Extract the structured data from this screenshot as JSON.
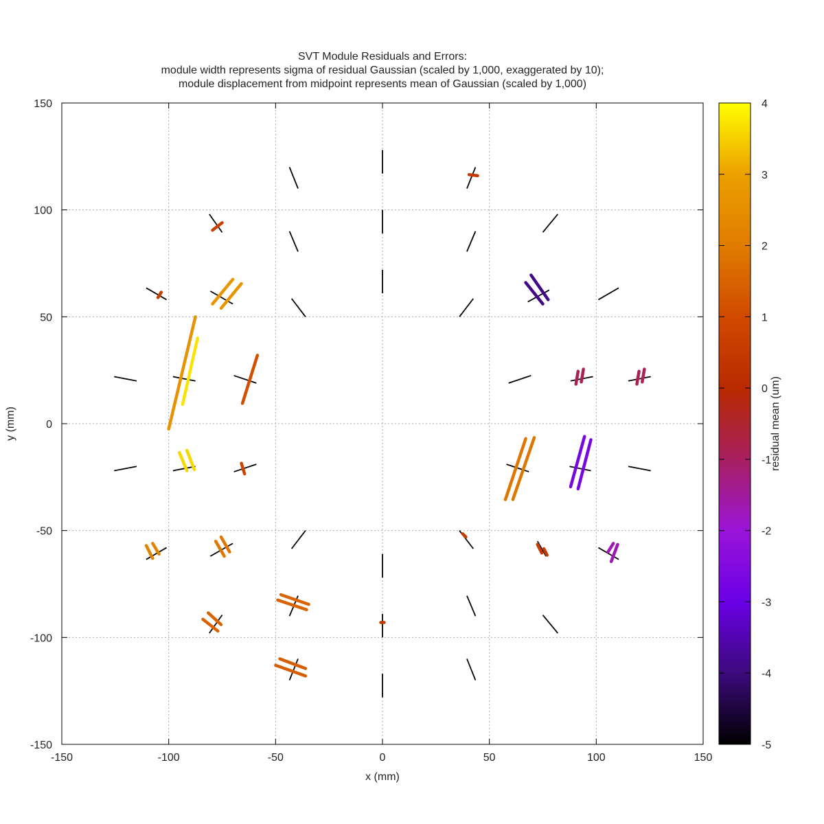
{
  "chart_data": {
    "type": "scatter",
    "title_lines": [
      "SVT Module Residuals and Errors:",
      "module width represents sigma of residual Gaussian (scaled by 1,000, exaggerated by 10);",
      "module displacement from midpoint represents mean of Gaussian (scaled by 1,000)"
    ],
    "xlabel": "x (mm)",
    "ylabel": "y (mm)",
    "xlim": [
      -150,
      150
    ],
    "ylim": [
      -150,
      150
    ],
    "xticks": [
      -150,
      -100,
      -50,
      0,
      50,
      100,
      150
    ],
    "yticks": [
      -150,
      -100,
      -50,
      0,
      50,
      100,
      150
    ],
    "xtick_labels": [
      "-150",
      "-100",
      "-50",
      "0",
      "50",
      "100",
      "150"
    ],
    "ytick_labels": [
      "-150",
      "-100",
      "-50",
      "0",
      "50",
      "100",
      "150"
    ],
    "grid": true,
    "colorbar": {
      "label": "residual mean (um)",
      "range": [
        -5,
        4
      ],
      "ticks": [
        -5,
        -4,
        -3,
        -2,
        -1,
        0,
        1,
        2,
        3,
        4
      ],
      "tick_labels": [
        "-5",
        "-4",
        "-3",
        "-2",
        "-1",
        "0",
        "1",
        "2",
        "3",
        "4"
      ],
      "stops": [
        {
          "v": -5,
          "color": "#000000"
        },
        {
          "v": -4,
          "color": "#3c0a7c"
        },
        {
          "v": -3,
          "color": "#6a00e6"
        },
        {
          "v": -2,
          "color": "#9a14d8"
        },
        {
          "v": -1,
          "color": "#a82060"
        },
        {
          "v": 0,
          "color": "#b82a00"
        },
        {
          "v": 1,
          "color": "#d04a00"
        },
        {
          "v": 2,
          "color": "#e07c00"
        },
        {
          "v": 3,
          "color": "#eca000"
        },
        {
          "v": 4,
          "color": "#ffff00"
        }
      ]
    },
    "modules": [
      {
        "x1": 0,
        "y1": 117,
        "x2": 0,
        "y2": 128
      },
      {
        "x1": 0,
        "y1": 89,
        "x2": 0,
        "y2": 100
      },
      {
        "x1": 0,
        "y1": 61,
        "x2": 0,
        "y2": 72
      },
      {
        "x1": 0,
        "y1": -89,
        "x2": 0,
        "y2": -100
      },
      {
        "x1": 0,
        "y1": -61,
        "x2": 0,
        "y2": -72
      },
      {
        "x1": 0,
        "y1": -117,
        "x2": 0,
        "y2": -128
      },
      {
        "x1": -43.5,
        "y1": 120,
        "x2": -39.5,
        "y2": 110
      },
      {
        "x1": -43.5,
        "y1": 90,
        "x2": -39.5,
        "y2": 80.5
      },
      {
        "x1": -42.5,
        "y1": 58.5,
        "x2": -36,
        "y2": 50
      },
      {
        "x1": 39.5,
        "y1": 110,
        "x2": 43.5,
        "y2": 120
      },
      {
        "x1": 39.5,
        "y1": 80.5,
        "x2": 43.5,
        "y2": 90
      },
      {
        "x1": 36,
        "y1": 50,
        "x2": 42.5,
        "y2": 58.5
      },
      {
        "x1": -36,
        "y1": -50,
        "x2": -42.5,
        "y2": -58.5
      },
      {
        "x1": 36,
        "y1": -50,
        "x2": 42.5,
        "y2": -58.5
      },
      {
        "x1": 39.5,
        "y1": -80.5,
        "x2": 43.5,
        "y2": -90
      },
      {
        "x1": 39.5,
        "y1": -110,
        "x2": 43.5,
        "y2": -120
      },
      {
        "x1": 75,
        "y1": 89.5,
        "x2": 82,
        "y2": 98
      },
      {
        "x1": 101,
        "y1": 58,
        "x2": 110.5,
        "y2": 63.5
      },
      {
        "x1": 59,
        "y1": 19,
        "x2": 69.5,
        "y2": 22.5
      },
      {
        "x1": 88,
        "y1": 20,
        "x2": 98.5,
        "y2": 22
      },
      {
        "x1": 115,
        "y1": 20,
        "x2": 125.5,
        "y2": 22
      },
      {
        "x1": 58,
        "y1": -19,
        "x2": 68.5,
        "y2": -22.5
      },
      {
        "x1": 87.5,
        "y1": -20,
        "x2": 97.5,
        "y2": -22
      },
      {
        "x1": 115,
        "y1": -20,
        "x2": 125.5,
        "y2": -22
      },
      {
        "x1": 75,
        "y1": -89.5,
        "x2": 82,
        "y2": -98
      },
      {
        "x1": 101,
        "y1": -58,
        "x2": 110.5,
        "y2": -63.5
      },
      {
        "x1": 72.5,
        "y1": -55,
        "x2": 76.5,
        "y2": -62
      },
      {
        "x1": 68,
        "y1": 57,
        "x2": 78,
        "y2": 62.5
      },
      {
        "x1": -81,
        "y1": 98,
        "x2": -75,
        "y2": 89.5
      },
      {
        "x1": -110.5,
        "y1": 63.5,
        "x2": -101,
        "y2": 58
      },
      {
        "x1": -80.5,
        "y1": 62,
        "x2": -70,
        "y2": 56
      },
      {
        "x1": -125.5,
        "y1": 22,
        "x2": -115,
        "y2": 20
      },
      {
        "x1": -98,
        "y1": 22,
        "x2": -87.5,
        "y2": 20
      },
      {
        "x1": -69.5,
        "y1": 22.5,
        "x2": -59,
        "y2": 19
      },
      {
        "x1": -125.5,
        "y1": -22,
        "x2": -115,
        "y2": -20
      },
      {
        "x1": -98,
        "y1": -22,
        "x2": -87.5,
        "y2": -20
      },
      {
        "x1": -69.5,
        "y1": -22.5,
        "x2": -59,
        "y2": -19
      },
      {
        "x1": -110.5,
        "y1": -63.5,
        "x2": -101,
        "y2": -58
      },
      {
        "x1": -80.5,
        "y1": -62,
        "x2": -70,
        "y2": -56
      },
      {
        "x1": -81,
        "y1": -98,
        "x2": -75,
        "y2": -89.5
      },
      {
        "x1": -43.5,
        "y1": -90,
        "x2": -39.5,
        "y2": -80.5
      },
      {
        "x1": -43.5,
        "y1": -120,
        "x2": -39.5,
        "y2": -110
      }
    ],
    "residuals": [
      {
        "x1": -100,
        "y1": -2.5,
        "x2": -87.5,
        "y2": 50,
        "mean": 2.6
      },
      {
        "x1": -93.5,
        "y1": 9,
        "x2": -86.5,
        "y2": 40,
        "mean": 3.7
      },
      {
        "x1": -65.5,
        "y1": 9.5,
        "x2": -58.5,
        "y2": 32,
        "mean": 1.1
      },
      {
        "x1": -79.5,
        "y1": 56,
        "x2": -70,
        "y2": 67.5,
        "mean": 2.7
      },
      {
        "x1": -75.5,
        "y1": 54,
        "x2": -66,
        "y2": 65.5,
        "mean": 2.7
      },
      {
        "x1": -79.5,
        "y1": 90.5,
        "x2": -75,
        "y2": 94,
        "mean": 0.7
      },
      {
        "x1": -105,
        "y1": 59,
        "x2": -103.5,
        "y2": 61.5,
        "mean": 0.6
      },
      {
        "x1": -95,
        "y1": -13.5,
        "x2": -91.5,
        "y2": -22,
        "mean": 3.6
      },
      {
        "x1": -91.5,
        "y1": -12.5,
        "x2": -88,
        "y2": -21.5,
        "mean": 3.6
      },
      {
        "x1": -66,
        "y1": -18.5,
        "x2": -64.5,
        "y2": -23.5,
        "mean": 0.8
      },
      {
        "x1": -110.5,
        "y1": -57,
        "x2": -107.5,
        "y2": -63,
        "mean": 2.2
      },
      {
        "x1": -107.5,
        "y1": -56,
        "x2": -104.5,
        "y2": -61,
        "mean": 2.2
      },
      {
        "x1": -78,
        "y1": -55,
        "x2": -74,
        "y2": -62,
        "mean": 1.9
      },
      {
        "x1": -75.5,
        "y1": -53,
        "x2": -71.5,
        "y2": -60,
        "mean": 1.9
      },
      {
        "x1": -84,
        "y1": -91.5,
        "x2": -77,
        "y2": -97,
        "mean": 1.5
      },
      {
        "x1": -81.5,
        "y1": -88.5,
        "x2": -75.5,
        "y2": -94,
        "mean": 1.5
      },
      {
        "x1": -49,
        "y1": -82.5,
        "x2": -35.5,
        "y2": -87,
        "mean": 1.5
      },
      {
        "x1": -47.5,
        "y1": -80,
        "x2": -34.5,
        "y2": -84.5,
        "mean": 1.5
      },
      {
        "x1": -50,
        "y1": -113,
        "x2": -36,
        "y2": -118,
        "mean": 1.4
      },
      {
        "x1": -48,
        "y1": -110,
        "x2": -36,
        "y2": -114.5,
        "mean": 1.4
      },
      {
        "x1": -0.8,
        "y1": -93,
        "x2": 0.8,
        "y2": -93,
        "mean": 0.5
      },
      {
        "x1": 40.5,
        "y1": 116.5,
        "x2": 44.5,
        "y2": 116,
        "mean": 0.5
      },
      {
        "x1": 37.5,
        "y1": -51.5,
        "x2": 39,
        "y2": -53,
        "mean": 0.6
      },
      {
        "x1": 57.5,
        "y1": -35.5,
        "x2": 67,
        "y2": -7,
        "mean": 1.9
      },
      {
        "x1": 61,
        "y1": -35.5,
        "x2": 71,
        "y2": -6.5,
        "mean": 1.9
      },
      {
        "x1": 88,
        "y1": -29.5,
        "x2": 94.5,
        "y2": -6,
        "mean": -2.7
      },
      {
        "x1": 91.5,
        "y1": -30.5,
        "x2": 97.5,
        "y2": -7.5,
        "mean": -2.7
      },
      {
        "x1": 72.5,
        "y1": -56.5,
        "x2": 74.5,
        "y2": -60.5,
        "mean": 0.6
      },
      {
        "x1": 75.5,
        "y1": -58.5,
        "x2": 77,
        "y2": -61.5,
        "mean": 0.6
      },
      {
        "x1": 105.5,
        "y1": -60,
        "x2": 108,
        "y2": -56,
        "mean": -1.7
      },
      {
        "x1": 107,
        "y1": -64.5,
        "x2": 110,
        "y2": -56.5,
        "mean": -1.7
      },
      {
        "x1": 67,
        "y1": 66,
        "x2": 75,
        "y2": 56,
        "mean": -3.9
      },
      {
        "x1": 69.5,
        "y1": 69.5,
        "x2": 77.5,
        "y2": 58,
        "mean": -3.9
      },
      {
        "x1": 90.5,
        "y1": 18.5,
        "x2": 91.5,
        "y2": 24.5,
        "mean": -0.9
      },
      {
        "x1": 93,
        "y1": 19.5,
        "x2": 94,
        "y2": 25.5,
        "mean": -0.9
      },
      {
        "x1": 119,
        "y1": 18.5,
        "x2": 120,
        "y2": 24.5,
        "mean": -0.9
      },
      {
        "x1": 121.5,
        "y1": 19.5,
        "x2": 122.5,
        "y2": 25.5,
        "mean": -0.9
      }
    ]
  }
}
